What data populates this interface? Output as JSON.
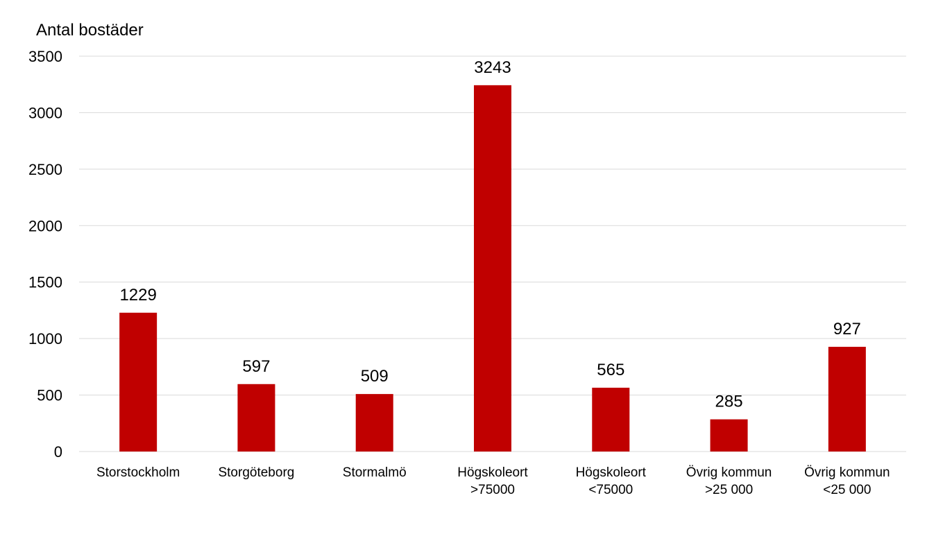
{
  "chart_data": {
    "type": "bar",
    "ylabel": "Antal bostäder",
    "xlabel": "",
    "ylim": [
      0,
      3500
    ],
    "yticks": [
      0,
      500,
      1000,
      1500,
      2000,
      2500,
      3000,
      3500
    ],
    "grid": true,
    "legend": "none",
    "bar_color": "#c00000",
    "categories": [
      [
        "Storstockholm"
      ],
      [
        "Storgöteborg"
      ],
      [
        "Stormalmö"
      ],
      [
        "Högskoleort",
        ">75000"
      ],
      [
        "Högskoleort",
        "<75000"
      ],
      [
        "Övrig kommun",
        ">25 000"
      ],
      [
        "Övrig kommun",
        "<25 000"
      ]
    ],
    "values": [
      1229,
      597,
      509,
      3243,
      565,
      285,
      927
    ]
  }
}
